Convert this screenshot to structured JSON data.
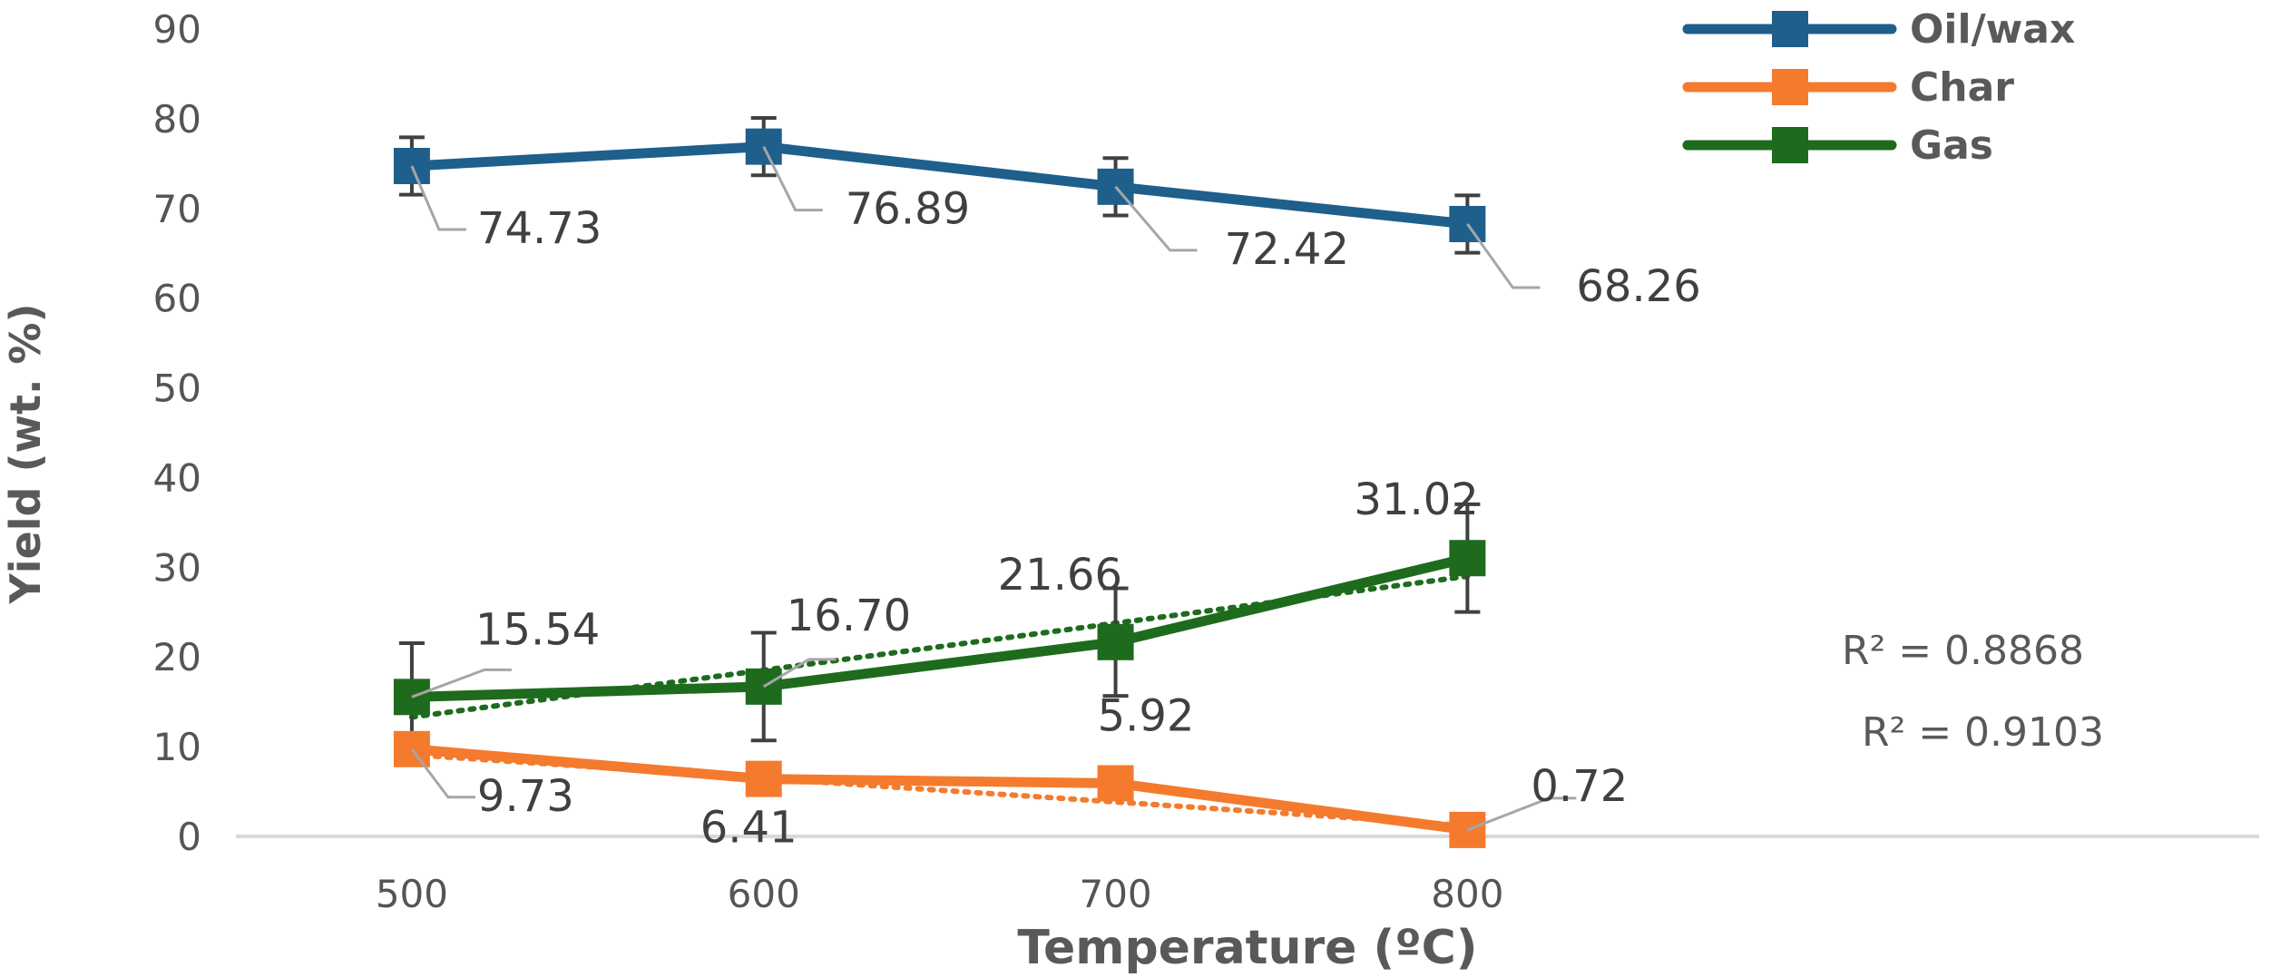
{
  "chart_data": {
    "type": "line",
    "title": "",
    "xlabel": "Temperature (ºC)",
    "ylabel": "Yield (wt. %)",
    "x": [
      500,
      600,
      700,
      800
    ],
    "xlim": [
      450,
      1025
    ],
    "ylim": [
      0,
      90
    ],
    "yticks": [
      0,
      10,
      20,
      30,
      40,
      50,
      60,
      70,
      80,
      90
    ],
    "xticks": [
      500,
      600,
      700,
      800
    ],
    "grid": false,
    "legend_position": "top-right",
    "series": [
      {
        "name": "Oil/wax",
        "color": "#1f5f8b",
        "values": [
          74.73,
          76.89,
          72.42,
          68.26
        ],
        "labels": [
          "74.73",
          "76.89",
          "72.42",
          "68.26"
        ],
        "error": [
          3.2,
          3.2,
          3.2,
          3.2
        ]
      },
      {
        "name": "Char",
        "color": "#f47b2e",
        "values": [
          9.73,
          6.41,
          5.92,
          0.72
        ],
        "labels": [
          "9.73",
          "6.41",
          "5.92",
          "0.72"
        ],
        "error": [
          1.6,
          1.6,
          1.6,
          1.6
        ],
        "trendline": {
          "style": "dotted",
          "r2": "R² = 0.9103",
          "start": 9.1,
          "end": 1.2
        }
      },
      {
        "name": "Gas",
        "color": "#1e6b1e",
        "values": [
          15.54,
          16.7,
          21.66,
          31.02
        ],
        "labels": [
          "15.54",
          "16.70",
          "21.66",
          "31.02"
        ],
        "error": [
          6,
          6,
          6,
          6
        ],
        "trendline": {
          "style": "dotted",
          "r2": "R² = 0.8868",
          "start": 13.3,
          "end": 29.0
        }
      }
    ]
  }
}
